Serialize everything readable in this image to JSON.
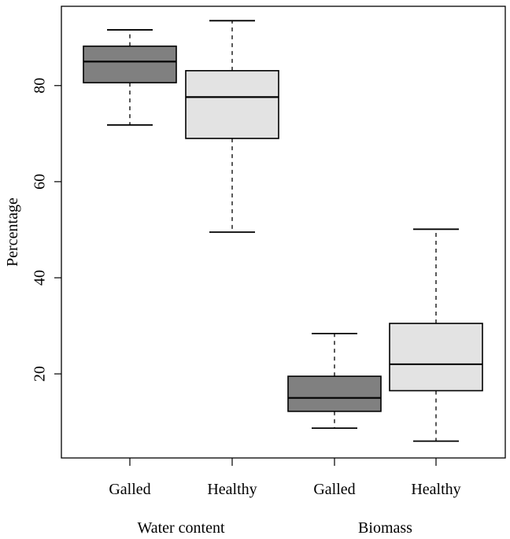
{
  "chart_data": {
    "type": "boxplot",
    "title": "",
    "ylabel": "Percentage",
    "xlabel": "",
    "ylim": [
      2.5,
      96.5
    ],
    "yticks": [
      20,
      40,
      60,
      80
    ],
    "ytick_labels": [
      "20",
      "40",
      "60",
      "80"
    ],
    "groups": [
      {
        "label": "Water content",
        "members": [
          0,
          1
        ]
      },
      {
        "label": "Biomass",
        "members": [
          2,
          3
        ]
      }
    ],
    "boxes": [
      {
        "label": "Galled",
        "group": "Water content",
        "whisker_low": 71.8,
        "q1": 80.6,
        "median": 85.0,
        "q3": 88.2,
        "whisker_high": 91.6,
        "fill": "#808080"
      },
      {
        "label": "Healthy",
        "group": "Water content",
        "whisker_low": 49.5,
        "q1": 69.0,
        "median": 77.6,
        "q3": 83.1,
        "whisker_high": 93.5,
        "fill": "#e3e3e3"
      },
      {
        "label": "Galled",
        "group": "Biomass",
        "whisker_low": 8.7,
        "q1": 12.2,
        "median": 15.0,
        "q3": 19.5,
        "whisker_high": 28.4,
        "fill": "#808080"
      },
      {
        "label": "Healthy",
        "group": "Biomass",
        "whisker_low": 6.0,
        "q1": 16.5,
        "median": 22.0,
        "q3": 30.5,
        "whisker_high": 50.1,
        "fill": "#e3e3e3"
      }
    ]
  }
}
